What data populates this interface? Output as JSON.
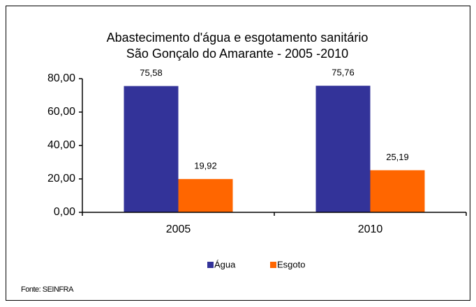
{
  "chart_data": {
    "type": "bar",
    "title": [
      "Abastecimento d'água e esgotamento sanitário",
      "São Gonçalo do Amarante - 2005 -2010"
    ],
    "categories": [
      "2005",
      "2010"
    ],
    "series": [
      {
        "name": "Água",
        "color": "#333399",
        "values": [
          75.58,
          75.76
        ],
        "value_labels": [
          "75,58",
          "75,76"
        ]
      },
      {
        "name": "Esgoto",
        "color": "#ff6600",
        "values": [
          19.92,
          25.19
        ],
        "value_labels": [
          "19,92",
          "25,19"
        ]
      }
    ],
    "ylim": [
      0,
      80
    ],
    "yticks": [
      {
        "value": 0,
        "label": "0,00"
      },
      {
        "value": 20,
        "label": "20,00"
      },
      {
        "value": 40,
        "label": "40,00"
      },
      {
        "value": 60,
        "label": "60,00"
      },
      {
        "value": 80,
        "label": "80,00"
      }
    ],
    "legend": "bottom",
    "source": "Fonte: SEINFRA"
  }
}
